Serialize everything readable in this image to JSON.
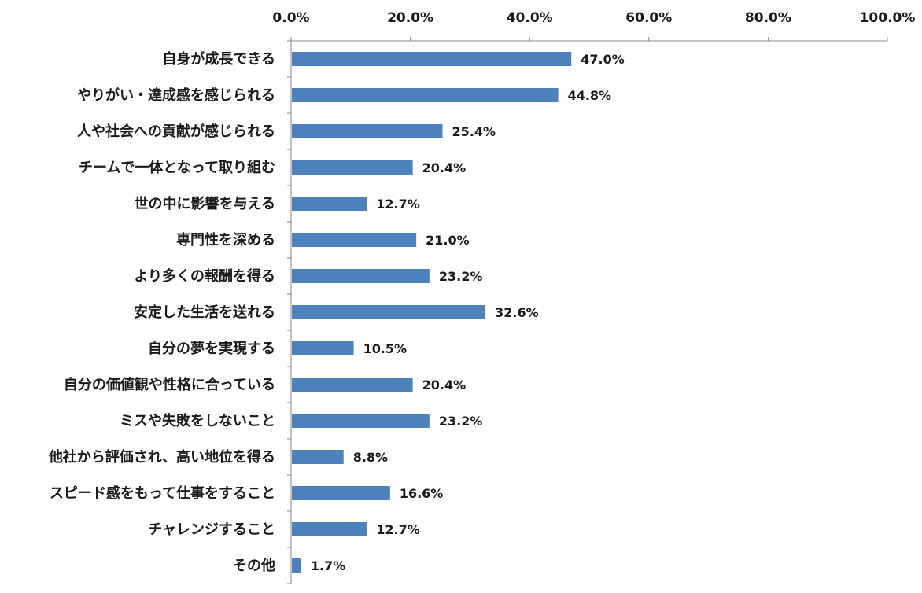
{
  "chart_data": {
    "type": "bar",
    "orientation": "horizontal",
    "categories": [
      "自身が成長できる",
      "やりがい・達成感を感じられる",
      "人や社会への貢献が感じられる",
      "チームで一体となって取り組む",
      "世の中に影響を与える",
      "専門性を深める",
      "より多くの報酬を得る",
      "安定した生活を送れる",
      "自分の夢を実現する",
      "自分の価値観や性格に合っている",
      "ミスや失敗をしないこと",
      "他社から評価され、高い地位を得る",
      "スピード感をもって仕事をすること",
      "チャレンジすること",
      "その他"
    ],
    "values": [
      47.0,
      44.8,
      25.4,
      20.4,
      12.7,
      21.0,
      23.2,
      32.6,
      10.5,
      20.4,
      23.2,
      8.8,
      16.6,
      12.7,
      1.7
    ],
    "value_labels": [
      "47.0%",
      "44.8%",
      "25.4%",
      "20.4%",
      "12.7%",
      "21.0%",
      "23.2%",
      "32.6%",
      "10.5%",
      "20.4%",
      "23.2%",
      "8.8%",
      "16.6%",
      "12.7%",
      "1.7%"
    ],
    "x_ticks": [
      "0.0%",
      "20.0%",
      "40.0%",
      "60.0%",
      "80.0%",
      "100.0%"
    ],
    "xlim": [
      0,
      100
    ],
    "axis_position": "top",
    "grid": false,
    "legend": "none",
    "title": "",
    "xlabel": "",
    "ylabel": "",
    "bar_color": "#4f81bd",
    "axis_color": "#888888"
  }
}
